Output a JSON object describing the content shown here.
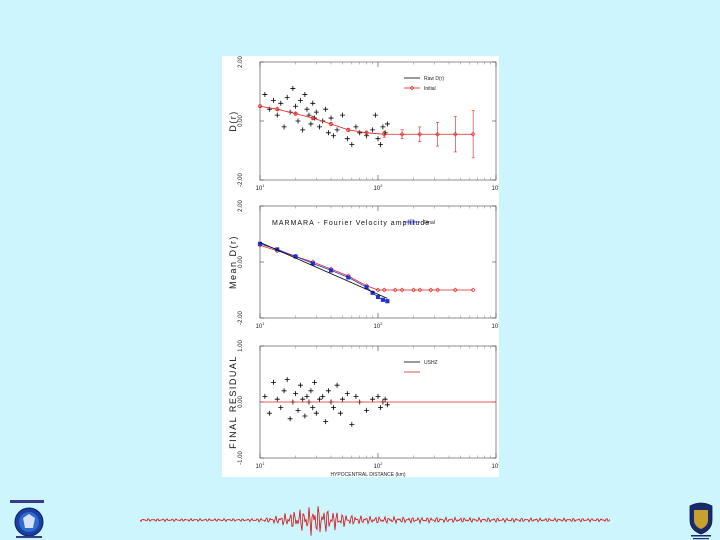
{
  "chart_data": [
    {
      "type": "scatter",
      "panel": "top",
      "title": "",
      "ylabel": "D(r)",
      "xlabel": "",
      "xscale": "log",
      "xlim": [
        10,
        1000
      ],
      "ylim": [
        -2,
        2
      ],
      "yticks": [
        "2.00",
        "0.00",
        "-2.00"
      ],
      "xticks": [
        {
          "base": "10",
          "exp": "1"
        },
        {
          "base": "10",
          "exp": "2"
        },
        {
          "base": "10",
          "exp": "3"
        }
      ],
      "legend": {
        "placement": "top-right",
        "entries": [
          {
            "label": "Raw D(r)",
            "style": "dash",
            "color": "#000000"
          },
          {
            "label": "Initial",
            "style": "line-diamond",
            "color": "#e02020"
          }
        ]
      },
      "series": [
        {
          "name": "Raw D(r)",
          "style": "plus",
          "color": "#000000",
          "x": [
            11,
            12,
            13,
            14,
            15,
            16,
            17,
            18,
            19,
            20,
            21,
            22,
            23,
            24,
            25,
            26,
            27,
            28,
            29,
            30,
            32,
            34,
            36,
            38,
            40,
            42,
            45,
            50,
            55,
            60,
            65,
            70,
            80,
            90,
            95,
            100,
            105,
            110,
            115,
            120
          ],
          "y": [
            0.9,
            0.4,
            0.7,
            0.2,
            0.6,
            -0.2,
            0.8,
            0.3,
            1.1,
            0.5,
            0.0,
            0.7,
            -0.3,
            0.9,
            0.4,
            0.2,
            -0.1,
            0.6,
            0.1,
            0.3,
            -0.2,
            0.0,
            0.4,
            -0.4,
            0.1,
            -0.5,
            -0.3,
            0.2,
            -0.6,
            -0.8,
            -0.2,
            -0.4,
            -0.5,
            -0.3,
            0.2,
            -0.6,
            -0.8,
            -0.2,
            -0.4,
            -0.1
          ]
        },
        {
          "name": "Initial",
          "style": "line-diamond",
          "color": "#e02020",
          "x": [
            10,
            14,
            20,
            28,
            40,
            56,
            80,
            113,
            160,
            226,
            320,
            452,
            640
          ],
          "y": [
            0.5,
            0.4,
            0.25,
            0.1,
            -0.1,
            -0.3,
            -0.4,
            -0.45,
            -0.45,
            -0.45,
            -0.45,
            -0.45,
            -0.45
          ],
          "err": [
            0.05,
            0.05,
            0.05,
            0.05,
            0.05,
            0.05,
            0.06,
            0.1,
            0.15,
            0.25,
            0.4,
            0.6,
            0.8
          ]
        }
      ]
    },
    {
      "type": "line",
      "panel": "middle",
      "title": "MARMARA - Fourier Velocity amplitude",
      "ylabel": "Mean D(r)",
      "xlabel": "",
      "xscale": "log",
      "xlim": [
        10,
        1000
      ],
      "ylim": [
        -2,
        2
      ],
      "yticks": [
        "2.00",
        "0.00",
        "-2.00"
      ],
      "xticks": [
        {
          "base": "10",
          "exp": "1"
        },
        {
          "base": "10",
          "exp": "2"
        },
        {
          "base": "10",
          "exp": "3"
        }
      ],
      "legend": {
        "placement": "top-right",
        "entries": [
          {
            "label": "Final",
            "style": "line-square",
            "color": "#2030d0"
          }
        ]
      },
      "series": [
        {
          "name": "Initial",
          "style": "line-diamond",
          "color": "#e02020",
          "x": [
            10,
            14,
            20,
            28,
            40,
            56,
            80,
            100,
            113,
            140,
            160,
            200,
            226,
            280,
            320,
            452,
            640
          ],
          "y": [
            0.6,
            0.4,
            0.2,
            0.0,
            -0.25,
            -0.5,
            -0.85,
            -1.0,
            -1.0,
            -1.0,
            -1.0,
            -1.0,
            -1.0,
            -1.0,
            -1.0,
            -1.0,
            -1.0
          ]
        },
        {
          "name": "Final",
          "style": "line-square",
          "color": "#2030d0",
          "x": [
            10,
            14,
            20,
            28,
            40,
            56,
            80,
            90,
            100,
            110,
            120
          ],
          "y": [
            0.65,
            0.45,
            0.2,
            -0.05,
            -0.3,
            -0.55,
            -0.9,
            -1.1,
            -1.25,
            -1.35,
            -1.4
          ]
        },
        {
          "name": "",
          "style": "line",
          "color": "#000000",
          "x": [
            10,
            120
          ],
          "y": [
            0.7,
            -1.3
          ]
        }
      ]
    },
    {
      "type": "scatter",
      "panel": "bottom",
      "title": "",
      "ylabel": "FINAL RESIDUAL",
      "xlabel": "HYPOCENTRAL DISTANCE (km)",
      "xscale": "log",
      "xlim": [
        10,
        1000
      ],
      "ylim": [
        -1,
        1
      ],
      "yticks": [
        "1.00",
        "0.00",
        "-1.00"
      ],
      "xticks": [
        {
          "base": "10",
          "exp": "1"
        },
        {
          "base": "10",
          "exp": "2"
        },
        {
          "base": "10",
          "exp": "3"
        }
      ],
      "legend": {
        "placement": "top-right",
        "entries": [
          {
            "label": "USHZ",
            "style": "dash",
            "color": "#000000"
          },
          {
            "label": "",
            "style": "line",
            "color": "#e02020"
          }
        ]
      },
      "series": [
        {
          "name": "USHZ",
          "style": "plus",
          "color": "#000000",
          "x": [
            11,
            12,
            13,
            14,
            15,
            16,
            17,
            18,
            19,
            20,
            21,
            22,
            23,
            24,
            25,
            26,
            27,
            28,
            29,
            30,
            32,
            34,
            36,
            38,
            40,
            42,
            45,
            48,
            50,
            55,
            60,
            65,
            70,
            80,
            90,
            100,
            105,
            110,
            115,
            120
          ],
          "y": [
            0.1,
            -0.2,
            0.35,
            0.05,
            -0.1,
            0.2,
            0.4,
            -0.3,
            0.0,
            0.15,
            -0.15,
            0.3,
            0.05,
            -0.25,
            0.1,
            0.0,
            0.2,
            -0.1,
            0.35,
            -0.2,
            0.05,
            0.1,
            -0.35,
            0.2,
            0.0,
            -0.1,
            0.3,
            -0.2,
            0.05,
            0.15,
            -0.4,
            0.1,
            0.0,
            -0.15,
            0.05,
            0.1,
            -0.1,
            0.0,
            0.05,
            -0.05
          ]
        },
        {
          "name": "",
          "style": "line",
          "color": "#e02020",
          "x": [
            10,
            1000
          ],
          "y": [
            0.0,
            0.0
          ]
        }
      ]
    }
  ]
}
